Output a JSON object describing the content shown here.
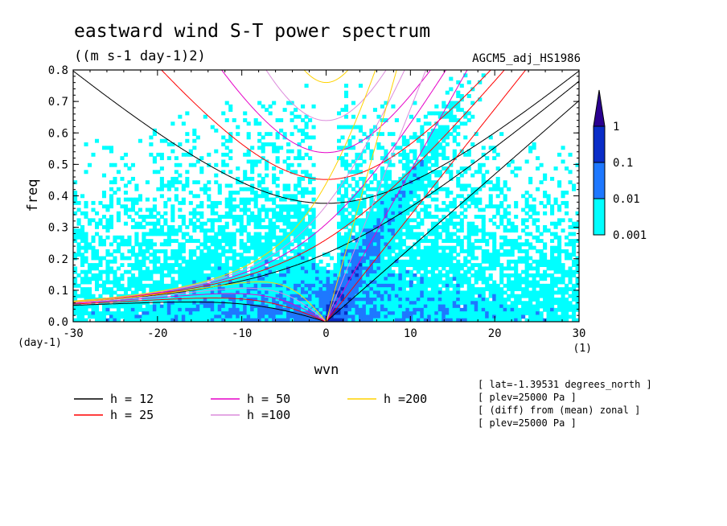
{
  "chart_data": {
    "type": "heatmap",
    "title": "eastward wind S-T power spectrum",
    "subtitle": "((m s-1 day-1)2)",
    "run_label": "AGCM5_adj_HS1986",
    "xlabel": "wvn",
    "xunit": "(1)",
    "ylabel": "freq",
    "yunit": "(day-1)",
    "xlim": [
      -30,
      30
    ],
    "ylim": [
      0,
      0.8
    ],
    "xticks": [
      -30,
      -20,
      -10,
      0,
      10,
      20,
      30
    ],
    "xtick_labels": [
      "-30",
      "-20",
      "-10",
      "0",
      "10",
      "20",
      "30"
    ],
    "yticks": [
      0,
      0.1,
      0.2,
      0.3,
      0.4,
      0.5,
      0.6,
      0.7,
      0.8
    ],
    "ytick_labels": [
      "0.0",
      "0.1",
      "0.2",
      "0.3",
      "0.4",
      "0.5",
      "0.6",
      "0.7",
      "0.8"
    ],
    "colorbar": {
      "levels": [
        0.001,
        0.01,
        0.1,
        1
      ],
      "labels": [
        "0.001",
        "0.01",
        "0.1",
        "1"
      ],
      "colors": [
        "#00ffff",
        "#1e78ff",
        "#0a2dc8",
        "#2a0090"
      ]
    },
    "dispersion_curves": [
      {
        "label": "h = 12",
        "h": 12,
        "color": "#000000"
      },
      {
        "label": "h = 25",
        "h": 25,
        "color": "#ff0000"
      },
      {
        "label": "h = 50",
        "h": 50,
        "color": "#e600c8"
      },
      {
        "label": "h =100",
        "h": 100,
        "color": "#dc8cdc"
      },
      {
        "label": "h =200",
        "h": 200,
        "color": "#ffd200"
      }
    ],
    "info_lines": [
      "[ lat=-1.39531 degrees_north ]",
      "[ plev=25000 Pa ]",
      "[ (diff) from (mean) zonal ]",
      "[ plev=25000 Pa ]"
    ]
  }
}
